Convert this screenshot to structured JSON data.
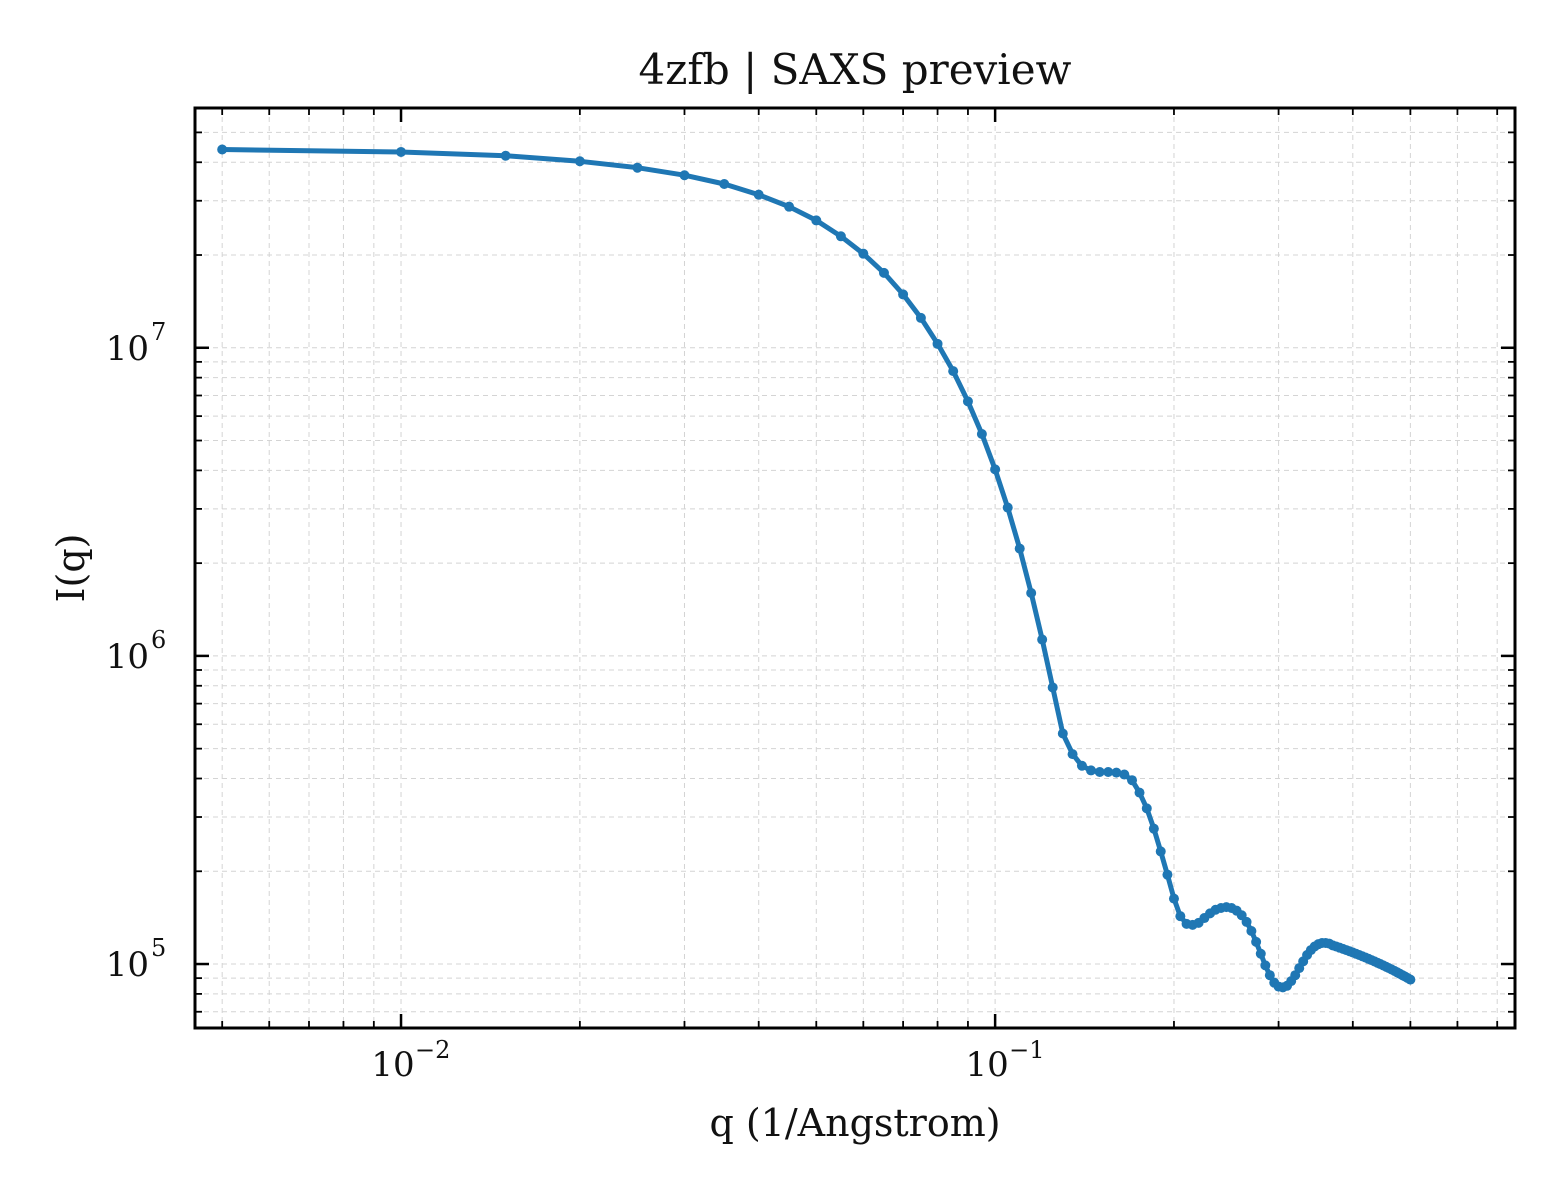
{
  "chart_data": {
    "type": "line",
    "title": "4zfb | SAXS preview",
    "xlabel": "q (1/Angstrom)",
    "ylabel": "I(q)",
    "xscale": "log",
    "yscale": "log",
    "xlim": [
      0.0045,
      0.75
    ],
    "ylim": [
      62000,
      60000000
    ],
    "grid": true,
    "x_ticks": [
      {
        "value": 0.01,
        "base": "10",
        "exp": "−2"
      },
      {
        "value": 0.1,
        "base": "10",
        "exp": "−1"
      }
    ],
    "y_ticks": [
      {
        "value": 100000,
        "base": "10",
        "exp": "5"
      },
      {
        "value": 1000000,
        "base": "10",
        "exp": "6"
      },
      {
        "value": 10000000,
        "base": "10",
        "exp": "7"
      }
    ],
    "series": [
      {
        "color": "#1f77b4",
        "x": [
          0.005,
          0.01,
          0.015,
          0.02,
          0.025,
          0.03,
          0.035,
          0.04,
          0.045,
          0.05,
          0.055,
          0.06,
          0.065,
          0.07,
          0.075,
          0.08,
          0.085,
          0.09,
          0.095,
          0.1,
          0.105,
          0.11,
          0.115,
          0.12,
          0.125,
          0.13,
          0.135,
          0.14,
          0.145,
          0.15,
          0.155,
          0.16,
          0.165,
          0.17,
          0.175,
          0.18,
          0.185,
          0.19,
          0.195,
          0.2,
          0.205,
          0.21,
          0.215,
          0.22,
          0.225,
          0.23,
          0.235,
          0.24,
          0.245,
          0.25,
          0.255,
          0.26,
          0.265,
          0.27,
          0.275,
          0.28,
          0.285,
          0.29,
          0.295,
          0.3,
          0.305,
          0.31,
          0.315,
          0.32,
          0.325,
          0.33,
          0.335,
          0.34,
          0.345,
          0.35,
          0.355,
          0.36,
          0.365,
          0.37,
          0.375,
          0.38,
          0.385,
          0.39,
          0.395,
          0.4,
          0.405,
          0.41,
          0.415,
          0.42,
          0.425,
          0.43,
          0.435,
          0.44,
          0.445,
          0.45,
          0.455,
          0.46,
          0.465,
          0.47,
          0.475,
          0.48,
          0.485,
          0.49,
          0.495,
          0.5
        ],
        "y": [
          44000000,
          43200000,
          42000000,
          40300000,
          38400000,
          36300000,
          34000000,
          31400000,
          28700000,
          25900000,
          23000000,
          20200000,
          17500000,
          14900000,
          12500000,
          10300000,
          8400000,
          6700000,
          5250000,
          4030000,
          3030000,
          2230000,
          1600000,
          1130000,
          790000,
          560000,
          480000,
          440000,
          425000,
          420000,
          420000,
          418000,
          412000,
          395000,
          360000,
          320000,
          275000,
          232000,
          195000,
          163000,
          143000,
          135000,
          134000,
          136000,
          141000,
          146000,
          150000,
          152000,
          153000,
          152000,
          149000,
          144000,
          137000,
          128000,
          118000,
          108000,
          99000,
          92000,
          87000,
          84500,
          84000,
          85000,
          88000,
          92000,
          97000,
          102000,
          107000,
          111000,
          114000,
          116000,
          117000,
          117000,
          116500,
          115000,
          114000,
          113000,
          112000,
          111000,
          110000,
          109000,
          108000,
          107000,
          106000,
          105000,
          104000,
          103000,
          102000,
          101000,
          100000,
          99000,
          98000,
          97000,
          96000,
          95000,
          94000,
          93000,
          92000,
          91000,
          90000,
          89000
        ]
      }
    ]
  }
}
